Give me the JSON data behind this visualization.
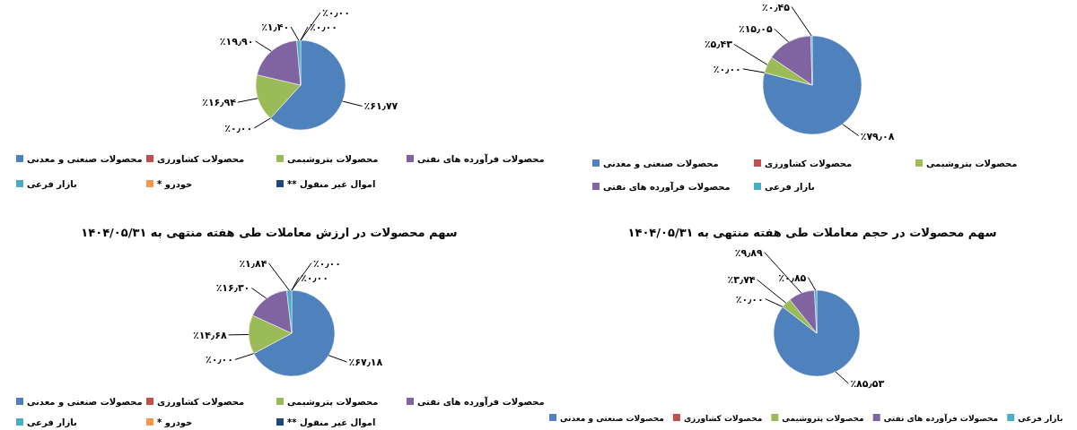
{
  "chart_data": [
    {
      "type": "pie",
      "categories": [
        "محصولات صنعتی و معدنی",
        "محصولات کشاورزی",
        "محصولات پتروشیمی",
        "محصولات فرآورده های نفتی",
        "بازار فرعی",
        "خودرو *",
        "اموال غیر منقول **"
      ],
      "values": [
        61.77,
        0.0,
        16.94,
        19.9,
        1.4,
        0.0,
        0.0
      ],
      "value_labels": [
        "٪۶۱٫۷۷",
        "٪۰٫۰۰",
        "٪۱۶٫۹۴",
        "٪۱۹٫۹۰",
        "٪۱٫۴۰",
        "٪۰٫۰۰",
        "٪۰٫۰۰"
      ],
      "colors": [
        "#4f81bd",
        "#c0504d",
        "#9bbb59",
        "#8064a2",
        "#4bacc6",
        "#f79646",
        "#1f497d"
      ],
      "legend": "bottom"
    },
    {
      "type": "pie",
      "categories": [
        "محصولات صنعتی و معدنی",
        "محصولات کشاورزی",
        "محصولات پتروشیمی",
        "محصولات فرآورده های نفتی",
        "بازار فرعی"
      ],
      "values": [
        79.08,
        0.0,
        5.43,
        15.05,
        0.45
      ],
      "value_labels": [
        "٪۷۹٫۰۸",
        "٪۰٫۰۰",
        "٪۵٫۴۳",
        "٪۱۵٫۰۵",
        "٪۰٫۴۵"
      ],
      "colors": [
        "#4f81bd",
        "#c0504d",
        "#9bbb59",
        "#8064a2",
        "#4bacc6"
      ],
      "legend": "bottom"
    },
    {
      "type": "pie",
      "title": "سهم محصولات در ارزش معاملات طی هفته منتهی به ۱۴۰۴/۰۵/۳۱",
      "categories": [
        "محصولات صنعتی و معدنی",
        "محصولات کشاورزی",
        "محصولات پتروشیمی",
        "محصولات فرآورده های نفتی",
        "بازار فرعی",
        "خودرو *",
        "اموال غیر منقول **"
      ],
      "values": [
        67.18,
        0.0,
        14.68,
        16.3,
        1.84,
        0.0,
        0.0
      ],
      "value_labels": [
        "٪۶۷٫۱۸",
        "٪۰٫۰۰",
        "٪۱۴٫۶۸",
        "٪۱۶٫۳۰",
        "٪۱٫۸۴",
        "٪۰٫۰۰",
        "٪۰٫۰۰"
      ],
      "colors": [
        "#4f81bd",
        "#c0504d",
        "#9bbb59",
        "#8064a2",
        "#4bacc6",
        "#f79646",
        "#1f497d"
      ],
      "legend": "bottom"
    },
    {
      "type": "pie",
      "title": "سهم محصولات در حجم معاملات طی هفته منتهی به ۱۴۰۴/۰۵/۳۱",
      "categories": [
        "محصولات صنعتی و معدنی",
        "محصولات کشاورزی",
        "محصولات پتروشیمی",
        "محصولات فرآورده های نفتی",
        "بازار فرعی"
      ],
      "values": [
        85.53,
        0.0,
        3.74,
        9.89,
        0.85
      ],
      "value_labels": [
        "٪۸۵٫۵۳",
        "٪۰٫۰۰",
        "٪۳٫۷۴",
        "٪۹٫۸۹",
        "٪۰٫۸۵"
      ],
      "colors": [
        "#4f81bd",
        "#c0504d",
        "#9bbb59",
        "#8064a2",
        "#4bacc6"
      ],
      "legend": "bottom"
    }
  ]
}
